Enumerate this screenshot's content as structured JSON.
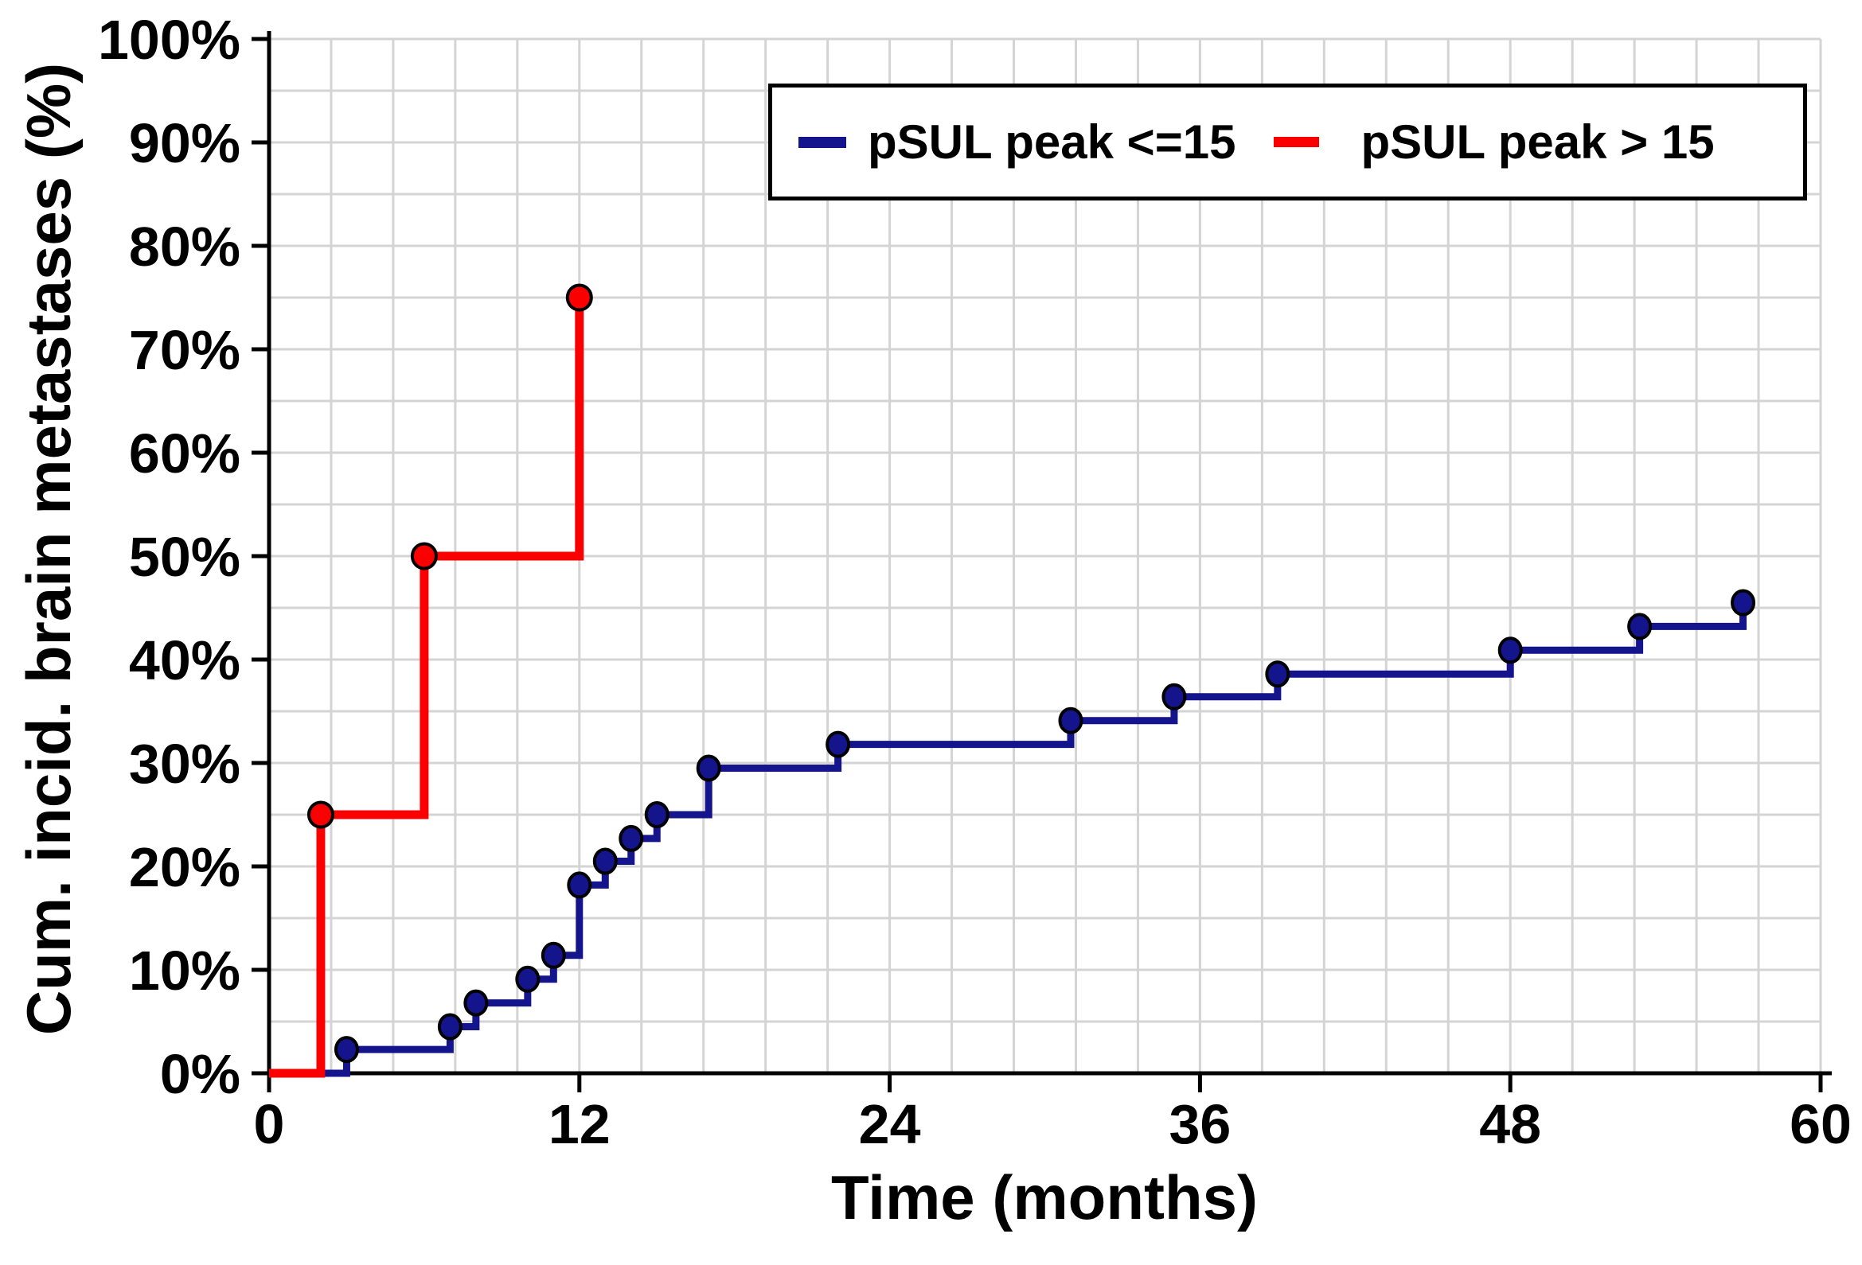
{
  "page": {
    "background": "#ffffff"
  },
  "chart_data": {
    "type": "line",
    "variant": "step-cumulative-incidence",
    "title": "",
    "xlabel": "Time (months)",
    "ylabel": "Cum. incid. brain metastases (%)",
    "xlim": [
      0,
      60
    ],
    "ylim": [
      0,
      100
    ],
    "x_ticks": [
      0,
      12,
      24,
      36,
      48,
      60
    ],
    "x_tick_labels": [
      "0",
      "12",
      "24",
      "36",
      "48",
      "60"
    ],
    "y_ticks": [
      0,
      10,
      20,
      30,
      40,
      50,
      60,
      70,
      80,
      90,
      100
    ],
    "y_tick_labels": [
      "0%",
      "10%",
      "20%",
      "30%",
      "40%",
      "50%",
      "60%",
      "70%",
      "80%",
      "90%",
      "100%"
    ],
    "x_minor_grid_step": 2.4,
    "y_minor_grid_step": 5,
    "grid": true,
    "legend_position": "top-center-inside",
    "colors": {
      "background": "#ffffff",
      "grid": "#d4d4d4",
      "axis": "#000000",
      "series1": "#14148c",
      "series2": "#fb0000",
      "marker_edge": "#000000",
      "legend_border": "#000000"
    },
    "series": [
      {
        "name": "pSUL peak <=15",
        "color_key": "series1",
        "start": [
          0,
          0
        ],
        "end_x": 57,
        "events": [
          [
            3,
            2.3
          ],
          [
            7,
            4.5
          ],
          [
            8,
            6.8
          ],
          [
            10,
            9.1
          ],
          [
            11,
            11.4
          ],
          [
            12,
            18.2
          ],
          [
            13,
            20.5
          ],
          [
            14,
            22.7
          ],
          [
            15,
            25.0
          ],
          [
            17,
            29.5
          ],
          [
            22,
            31.8
          ],
          [
            31,
            34.1
          ],
          [
            35,
            36.4
          ],
          [
            39,
            38.6
          ],
          [
            48,
            40.9
          ],
          [
            53,
            43.2
          ],
          [
            57,
            45.5
          ]
        ]
      },
      {
        "name": "pSUL peak > 15",
        "color_key": "series2",
        "start": [
          0,
          0
        ],
        "end_x": 12,
        "events": [
          [
            2,
            25.0
          ],
          [
            6,
            50.0
          ],
          [
            12,
            75.0
          ]
        ]
      }
    ]
  }
}
